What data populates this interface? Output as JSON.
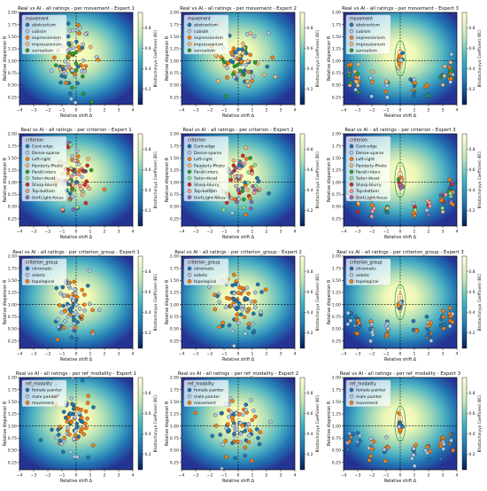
{
  "chart_data": {
    "type": "scatter",
    "xlabel": "Relative shift Δ",
    "ylabel": "Relative dispersion R",
    "colorbar_label": "Bhattacharyya Coefficient (BC)",
    "colorbar_ticks": [
      "0.2",
      "0.4",
      "0.6",
      "0.8"
    ],
    "xlim": [
      -4,
      4
    ],
    "ylim": [
      0.1,
      2.0
    ],
    "x_ticks": [
      "−4",
      "−3",
      "−2",
      "−1",
      "0",
      "1",
      "2",
      "3",
      "4"
    ],
    "y_ticks": [
      "0.25",
      "0.50",
      "0.75",
      "1.00",
      "1.25",
      "1.50",
      "1.75",
      "2.00"
    ],
    "rows": [
      {
        "group": "movement",
        "legend": [
          "abstractism",
          "cubism",
          "expressionism",
          "impressionism",
          "surrealism"
        ],
        "colors": [
          "#1f77b4",
          "#aec7e8",
          "#ff7f0e",
          "#ffbb78",
          "#2ca02c"
        ],
        "titles": [
          "Real vs AI - all ratings - per movement - Expert 1",
          "Real vs AI - all ratings - per movement - Expert 2",
          "Real vs AI - all ratings - per movement - Expert 3"
        ]
      },
      {
        "group": "criterion",
        "legend": [
          "Cent-edge",
          "Dense-sparse",
          "Left-right",
          "Painterly-Photo",
          "Parall-inters",
          "Satur-desat",
          "Sharp-blurry",
          "Top-bottom",
          "Unif.Light-focus"
        ],
        "colors": [
          "#1f77b4",
          "#aec7e8",
          "#ff7f0e",
          "#ffbb78",
          "#2ca02c",
          "#98df8a",
          "#d62728",
          "#ff9896",
          "#9467bd"
        ],
        "titles": [
          "Real vs AI - all ratings - per criterion - Expert 1",
          "Real vs AI - all ratings - per criterion - Expert 2",
          "Real vs AI - all ratings - per criterion - Expert 3"
        ]
      },
      {
        "group": "criterion_group",
        "legend": [
          "chromatic",
          "eidetic",
          "topological"
        ],
        "colors": [
          "#1f77b4",
          "#aec7e8",
          "#ff7f0e"
        ],
        "titles": [
          "Real vs AI - all ratings - per criterion_group - Expert 1",
          "Real vs AI - all ratings - per criterion_group - Expert 2",
          "Real vs AI - all ratings - per criterion_group - Expert 3"
        ]
      },
      {
        "group": "ref_modality",
        "legend": [
          "female painter",
          "male painter",
          "movement"
        ],
        "colors": [
          "#1f77b4",
          "#aec7e8",
          "#ff7f0e"
        ],
        "titles": [
          "Real vs AI - all ratings - per ref_modality - Expert 1",
          "Real vs AI - all ratings - per ref_modality - Expert 2",
          "Real vs AI - all ratings - per ref_modality - Expert 3"
        ]
      }
    ],
    "expert_clusters": [
      {
        "expert": "Expert 1",
        "center": [
          -0.3,
          1.0
        ],
        "spread": [
          1.0,
          0.38
        ]
      },
      {
        "expert": "Expert 2",
        "center": [
          0.0,
          1.0
        ],
        "spread": [
          1.3,
          0.3
        ]
      },
      {
        "expert": "Expert 3",
        "stripes_x": [
          -3.6,
          -3,
          -2,
          -1,
          0,
          1,
          2,
          3,
          3.6
        ]
      }
    ],
    "points_per_panel": 80
  }
}
